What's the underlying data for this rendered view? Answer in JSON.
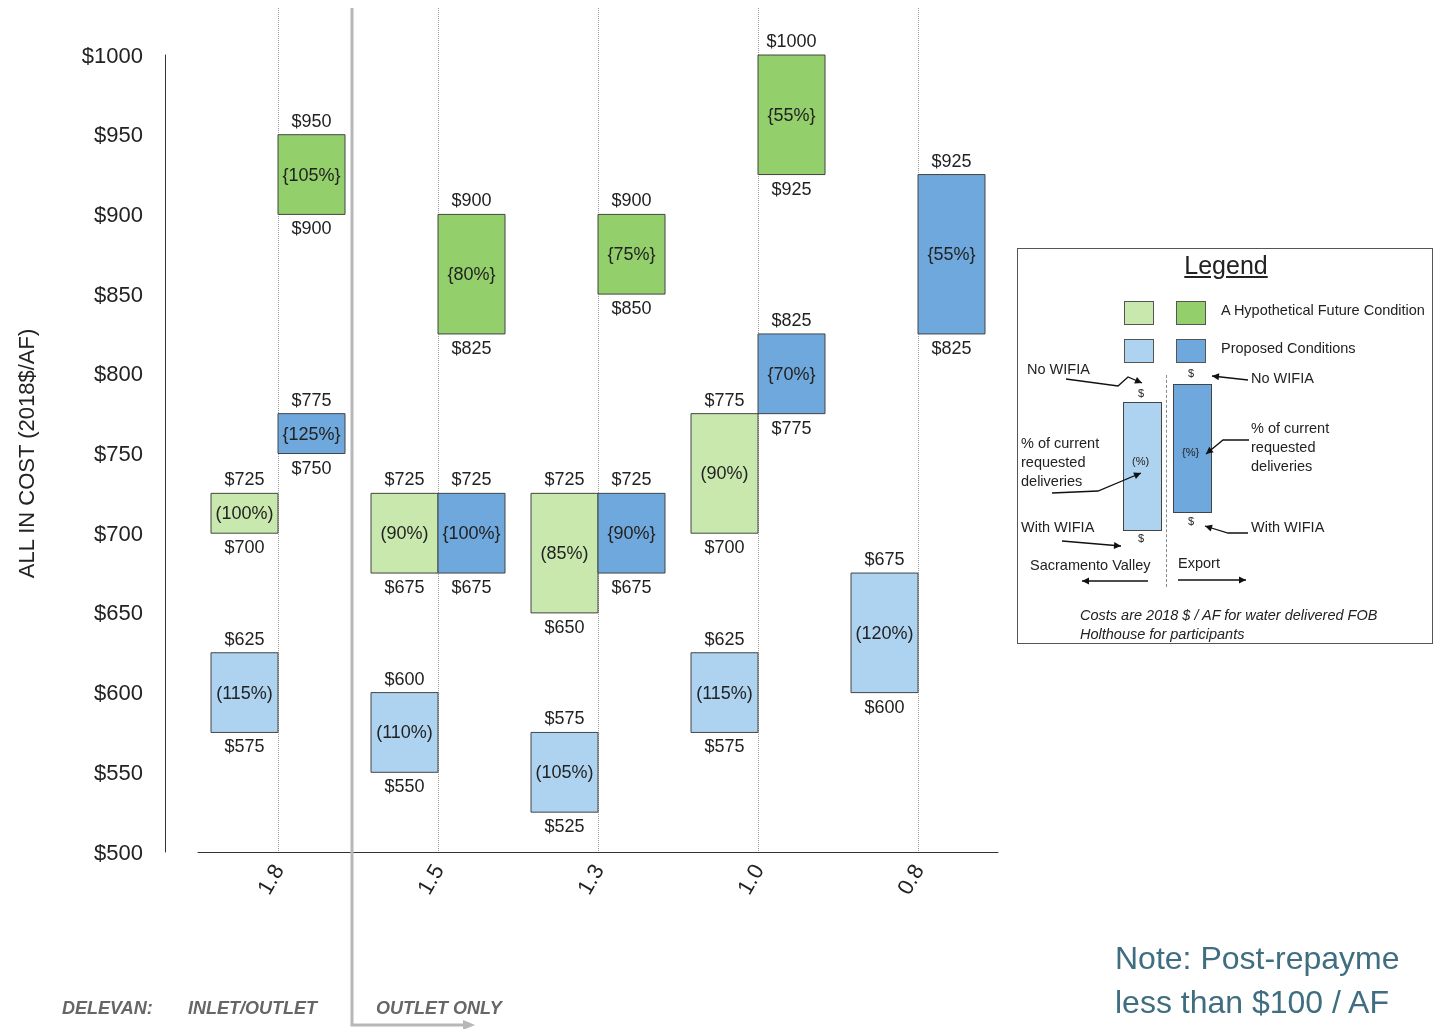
{
  "chart_data": {
    "type": "bar",
    "ylabel": "ALL IN COST (2018$/AF)",
    "legend_title": "Legend",
    "legend": "right",
    "grid": "x",
    "categories": [
      "1.8",
      "1.5",
      "1.3",
      "1.0",
      "0.8"
    ],
    "ylim": [
      500,
      1000
    ],
    "yticks": [
      {
        "value": 500,
        "label": "$500"
      },
      {
        "value": 550,
        "label": "$550"
      },
      {
        "value": 600,
        "label": "$600"
      },
      {
        "value": 650,
        "label": "$650"
      },
      {
        "value": 700,
        "label": "$700"
      },
      {
        "value": 750,
        "label": "$750"
      },
      {
        "value": 800,
        "label": "$800"
      },
      {
        "value": 850,
        "label": "$850"
      },
      {
        "value": 900,
        "label": "$900"
      },
      {
        "value": 950,
        "label": "$950"
      },
      {
        "value": 1000,
        "label": "$1000"
      }
    ],
    "series": [
      {
        "color": "#c9e8ae",
        "base": [
          700,
          675,
          650,
          700,
          null
        ],
        "values": [
          25,
          50,
          75,
          75,
          null
        ]
      },
      {
        "color": "#aed3f0",
        "base": [
          575,
          550,
          525,
          575,
          600
        ],
        "values": [
          50,
          50,
          50,
          50,
          75
        ]
      },
      {
        "name": "A Hypothetical Future Condition",
        "color": "#93cf6a",
        "base": [
          900,
          825,
          850,
          925,
          null
        ],
        "values": [
          50,
          75,
          50,
          75,
          null
        ]
      },
      {
        "name": "Proposed Conditions",
        "color": "#6fa8dc",
        "base": [
          750,
          675,
          675,
          775,
          825
        ],
        "values": [
          25,
          50,
          50,
          50,
          100
        ]
      }
    ],
    "annotations": [
      {
        "text": "(100%)",
        "x": "1.8",
        "y": 712.5
      },
      {
        "text": "(90%)",
        "x": "1.5",
        "y": 700
      },
      {
        "text": "(85%)",
        "x": "1.3",
        "y": 687.5
      },
      {
        "text": "(90%)",
        "x": "1.0",
        "y": 737.5
      },
      {
        "text": "(115%)",
        "x": "1.8",
        "y": 600
      },
      {
        "text": "(110%)",
        "x": "1.5",
        "y": 575
      },
      {
        "text": "(105%)",
        "x": "1.3",
        "y": 550
      },
      {
        "text": "(115%)",
        "x": "1.0",
        "y": 600
      },
      {
        "text": "(120%)",
        "x": "0.8",
        "y": 637.5
      },
      {
        "text": "{105%}",
        "x": "1.8",
        "y": 925
      },
      {
        "text": "{80%}",
        "x": "1.5",
        "y": 862.5
      },
      {
        "text": "{75%}",
        "x": "1.3",
        "y": 875
      },
      {
        "text": "{55%}",
        "x": "1.0",
        "y": 962.5
      },
      {
        "text": "{125%}",
        "x": "1.8",
        "y": 762.5
      },
      {
        "text": "{100%}",
        "x": "1.5",
        "y": 700
      },
      {
        "text": "{90%}",
        "x": "1.3",
        "y": 700
      },
      {
        "text": "{70%}",
        "x": "1.0",
        "y": 800
      },
      {
        "text": "{55%}",
        "x": "0.8",
        "y": 875
      },
      {
        "text": "$725",
        "x": "1.8",
        "y": 725
      },
      {
        "text": "$700",
        "x": "1.8",
        "y": 700
      },
      {
        "text": "$625",
        "x": "1.8",
        "y": 625
      },
      {
        "text": "$575",
        "x": "1.8",
        "y": 575
      },
      {
        "text": "$950",
        "x": "1.8",
        "y": 950
      },
      {
        "text": "$900",
        "x": "1.8",
        "y": 900
      },
      {
        "text": "$775",
        "x": "1.8",
        "y": 775
      },
      {
        "text": "$750",
        "x": "1.8",
        "y": 750
      },
      {
        "text": "$725",
        "x": "1.5",
        "y": 725
      },
      {
        "text": "$675",
        "x": "1.5",
        "y": 675
      },
      {
        "text": "$600",
        "x": "1.5",
        "y": 600
      },
      {
        "text": "$550",
        "x": "1.5",
        "y": 550
      },
      {
        "text": "$900",
        "x": "1.5",
        "y": 900
      },
      {
        "text": "$825",
        "x": "1.5",
        "y": 825
      },
      {
        "text": "$725",
        "x": "1.5",
        "y": 725
      },
      {
        "text": "$675",
        "x": "1.5",
        "y": 675
      },
      {
        "text": "$725",
        "x": "1.3",
        "y": 725
      },
      {
        "text": "$650",
        "x": "1.3",
        "y": 650
      },
      {
        "text": "$575",
        "x": "1.3",
        "y": 575
      },
      {
        "text": "$525",
        "x": "1.3",
        "y": 525
      },
      {
        "text": "$900",
        "x": "1.3",
        "y": 900
      },
      {
        "text": "$850",
        "x": "1.3",
        "y": 850
      },
      {
        "text": "$725",
        "x": "1.3",
        "y": 725
      },
      {
        "text": "$675",
        "x": "1.3",
        "y": 675
      },
      {
        "text": "$775",
        "x": "1.0",
        "y": 775
      },
      {
        "text": "$700",
        "x": "1.0",
        "y": 700
      },
      {
        "text": "$625",
        "x": "1.0",
        "y": 625
      },
      {
        "text": "$575",
        "x": "1.0",
        "y": 575
      },
      {
        "text": "$1000",
        "x": "1.0",
        "y": 1000
      },
      {
        "text": "$925",
        "x": "1.0",
        "y": 925
      },
      {
        "text": "$825",
        "x": "1.0",
        "y": 825
      },
      {
        "text": "$775",
        "x": "1.0",
        "y": 775
      },
      {
        "text": "$675",
        "x": "0.8",
        "y": 675
      },
      {
        "text": "$600",
        "x": "0.8",
        "y": 600
      },
      {
        "text": "$925",
        "x": "0.8",
        "y": 925
      },
      {
        "text": "$825",
        "x": "0.8",
        "y": 825
      },
      "No WIFIA",
      "No WIFIA",
      "% of current requested deliveries",
      "% of current requested deliveries",
      "With WIFIA",
      "With WIFIA",
      "$",
      "$",
      "$",
      "$",
      "(%)",
      "{%}",
      "Sacramento Valley",
      "Export",
      "Costs are 2018 $ / AF  for water delivered FOB Holthouse for participants",
      "DELEVAN:",
      "INLET/OUTLET",
      "OUTLET ONLY",
      "Note: Post-repayme",
      "less than $100 / AF"
    ]
  }
}
